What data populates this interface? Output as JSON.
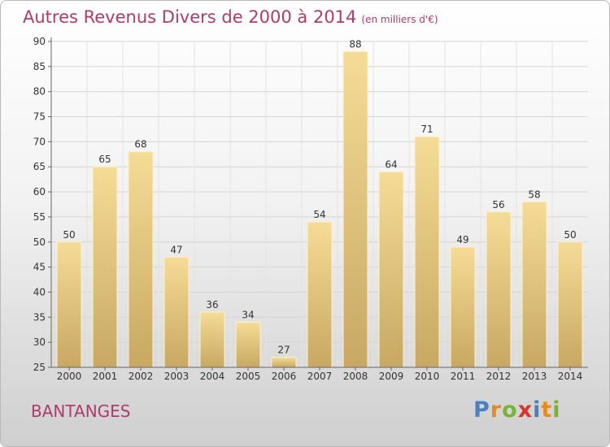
{
  "title": "Autres Revenus Divers de 2000 à 2014",
  "subtitle": "(en milliers d'€)",
  "commune": "BANTANGES",
  "brand": {
    "letters": [
      "P",
      "r",
      "o",
      "x",
      "i",
      "t",
      "i"
    ],
    "colors": [
      "#4a7fc0",
      "#ea8a1c",
      "#79b431",
      "#d8342a",
      "#4a7fc0",
      "#ea8a1c",
      "#79b431"
    ]
  },
  "colors": {
    "title": "#b03a6c",
    "bar_top": "#f5dc96",
    "bar_bottom": "#c8a862",
    "axis": "#666666",
    "grid": "#d4d4d4"
  },
  "chart_data": {
    "type": "bar",
    "title": "Autres Revenus Divers de 2000 à 2014",
    "subtitle": "(en milliers d'€)",
    "categories": [
      "2000",
      "2001",
      "2002",
      "2003",
      "2004",
      "2005",
      "2006",
      "2007",
      "2008",
      "2009",
      "2010",
      "2011",
      "2012",
      "2013",
      "2014"
    ],
    "values": [
      50,
      65,
      68,
      47,
      36,
      34,
      27,
      54,
      88,
      64,
      71,
      49,
      56,
      58,
      50
    ],
    "ylim": [
      25,
      90
    ],
    "yticks": [
      25,
      30,
      35,
      40,
      45,
      50,
      55,
      60,
      65,
      70,
      75,
      80,
      85,
      90
    ],
    "xlabel": "",
    "ylabel": "",
    "grid": true,
    "data_labels": true
  }
}
